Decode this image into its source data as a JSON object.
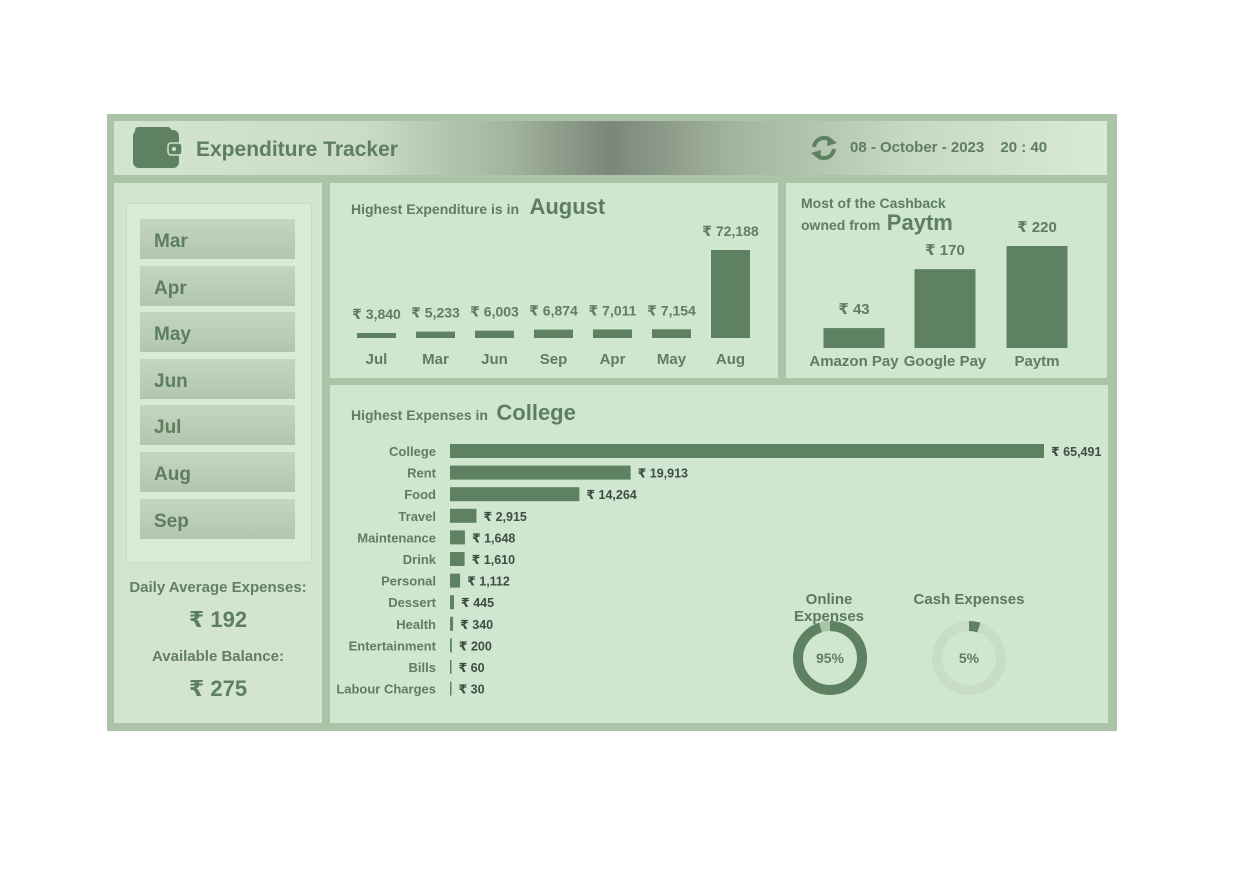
{
  "header": {
    "title": "Expenditure Tracker",
    "date": "08 - October - 2023",
    "time": "20 : 40"
  },
  "slicer": {
    "months": [
      "Mar",
      "Apr",
      "May",
      "Jun",
      "Jul",
      "Aug",
      "Sep"
    ]
  },
  "stats": {
    "daily_avg_label": "Daily Average Expenses:",
    "daily_avg_value": "₹ 192",
    "balance_label": "Available Balance:",
    "balance_value": "₹ 275"
  },
  "monthly_panel": {
    "title_prefix": "Highest Expenditure is in",
    "title_highlight": "August"
  },
  "cashback_panel": {
    "title_line1": "Most of the Cashback",
    "title_line2_prefix": "owned from",
    "title_highlight": "Paytm"
  },
  "category_panel": {
    "title_prefix": "Highest Expenses in",
    "title_highlight": "College",
    "online_label": "Online Expenses",
    "cash_label": "Cash Expenses"
  },
  "colors": {
    "bar": "#5e8261",
    "ring_track": "#cfe6d1",
    "ring_light": "#a9c3a6"
  },
  "chart_data": [
    {
      "type": "bar",
      "categories": [
        "Jul",
        "Mar",
        "Jun",
        "Sep",
        "Apr",
        "May",
        "Aug"
      ],
      "values": [
        3840,
        5233,
        6003,
        6874,
        7011,
        7154,
        72188
      ],
      "labels": [
        "₹ 3,840",
        "₹ 5,233",
        "₹ 6,003",
        "₹ 6,874",
        "₹ 7,011",
        "₹ 7,154",
        "₹ 72,188"
      ],
      "title": "Highest Expenditure is in August"
    },
    {
      "type": "bar",
      "categories": [
        "Amazon Pay",
        "Google Pay",
        "Paytm"
      ],
      "values": [
        43,
        170,
        220
      ],
      "labels": [
        "₹ 43",
        "₹ 170",
        "₹ 220"
      ],
      "title": "Most of the Cashback owned from Paytm"
    },
    {
      "type": "bar",
      "orientation": "horizontal",
      "categories": [
        "College",
        "Rent",
        "Food",
        "Travel",
        "Maintenance",
        "Drink",
        "Personal",
        "Dessert",
        "Health",
        "Entertainment",
        "Bills",
        "Labour Charges"
      ],
      "values": [
        65491,
        19913,
        14264,
        2915,
        1648,
        1610,
        1112,
        445,
        340,
        200,
        60,
        30
      ],
      "labels": [
        "₹ 65,491",
        "₹ 19,913",
        "₹ 14,264",
        "₹ 2,915",
        "₹ 1,648",
        "₹ 1,610",
        "₹ 1,112",
        "₹ 445",
        "₹ 340",
        "₹ 200",
        "₹ 60",
        "₹ 30"
      ],
      "title": "Highest Expenses in College"
    },
    {
      "type": "pie",
      "name": "Online Expenses",
      "values": [
        95,
        5
      ],
      "label": "95%"
    },
    {
      "type": "pie",
      "name": "Cash Expenses",
      "values": [
        5,
        95
      ],
      "label": "5%"
    }
  ]
}
